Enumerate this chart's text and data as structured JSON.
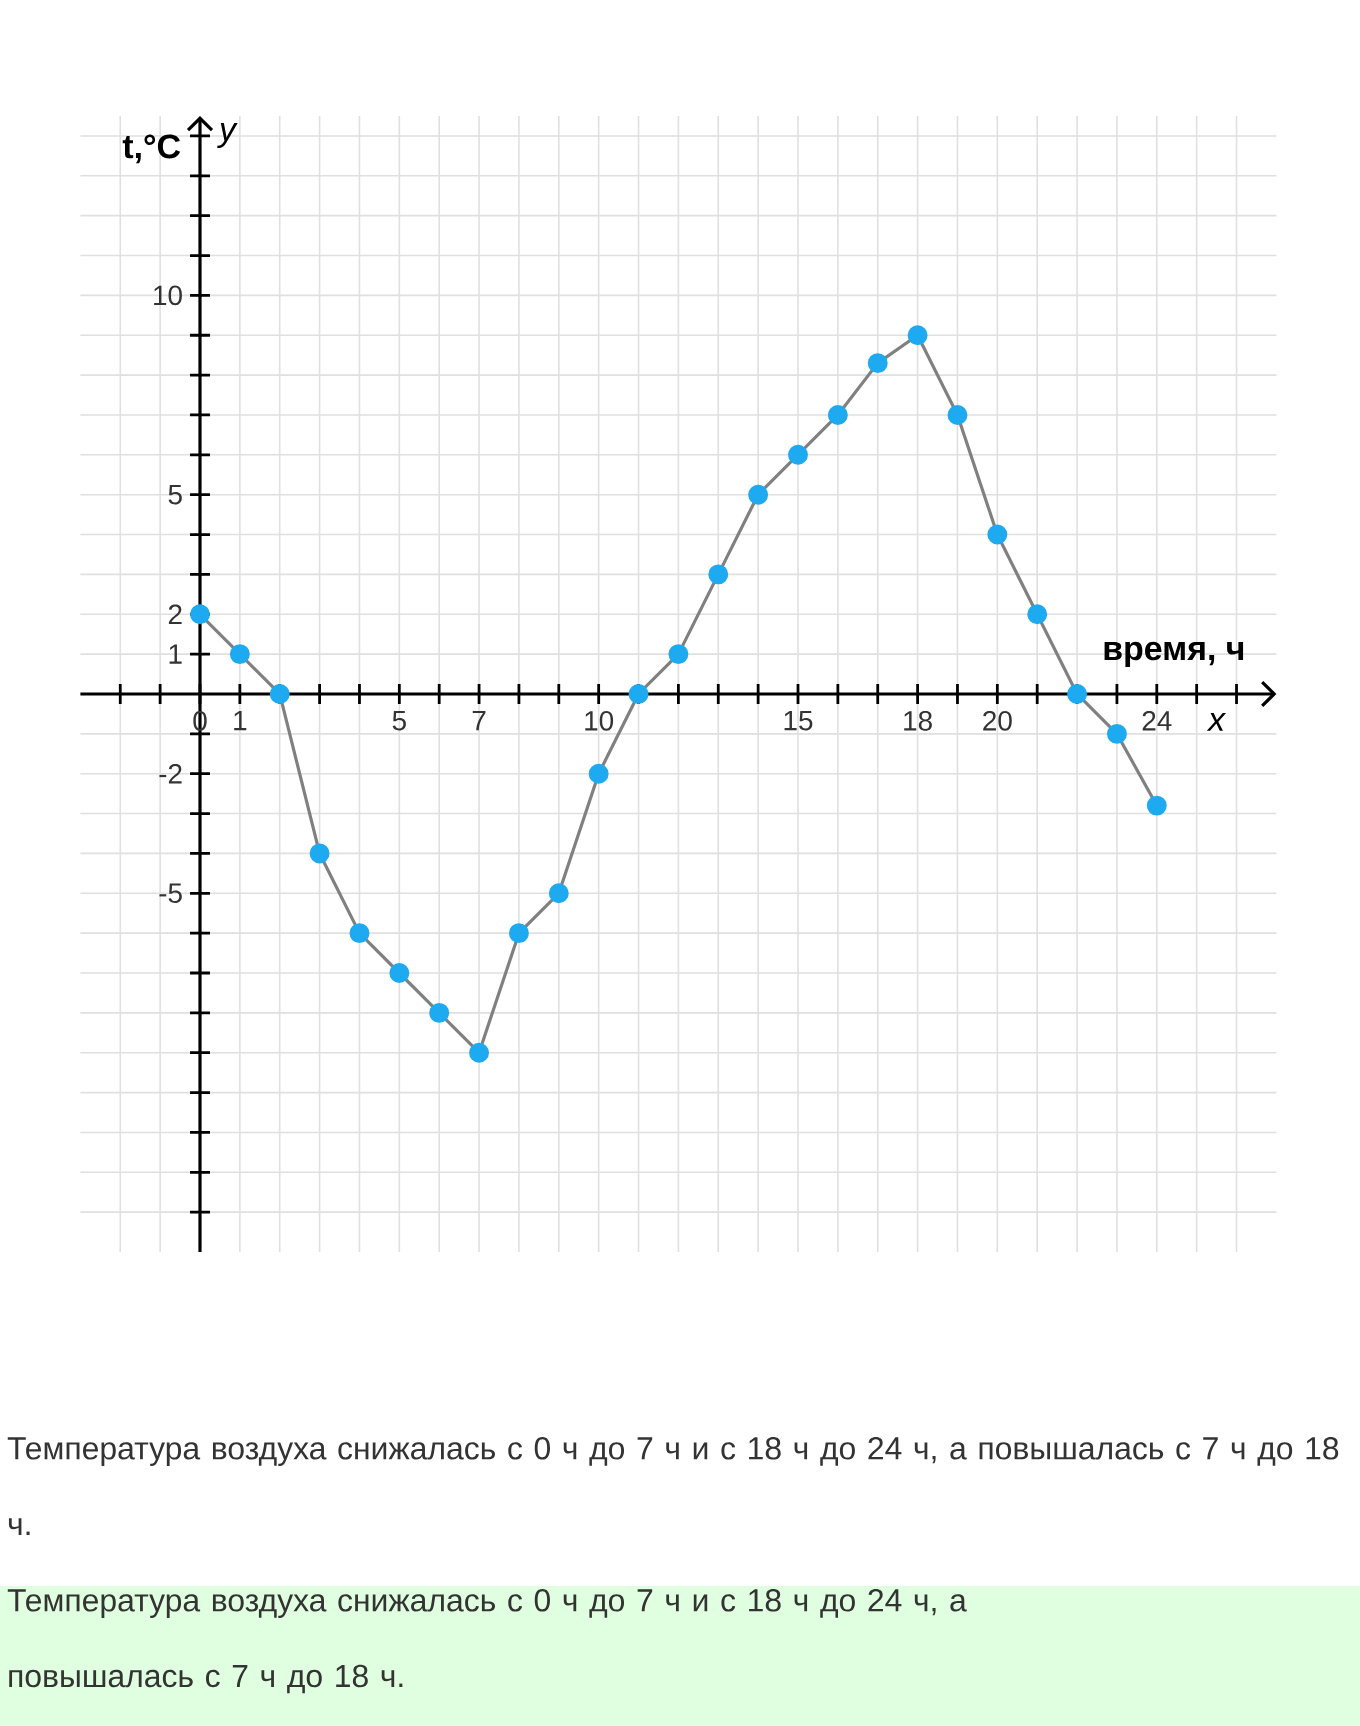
{
  "chart_data": {
    "type": "line",
    "xlabel": "время, ч",
    "ylabel": "t,°C",
    "x": [
      0,
      1,
      2,
      3,
      4,
      5,
      6,
      7,
      8,
      9,
      10,
      11,
      12,
      13,
      14,
      15,
      16,
      17,
      18,
      19,
      20,
      21,
      22,
      23,
      24
    ],
    "series": [
      {
        "color": "#1eaaf0",
        "values": [
          2,
          1,
          0,
          -4,
          -6,
          -7,
          -8,
          -9,
          -6,
          -5,
          -2,
          0,
          1,
          3,
          5,
          6,
          7,
          8.3,
          9,
          7,
          4,
          2,
          0,
          -1,
          -2.8
        ]
      }
    ],
    "marker": "circle",
    "grid": true,
    "xlim": [
      -3,
      27
    ],
    "ylim": [
      -14,
      14.5
    ],
    "xticks": [
      {
        "value": -2,
        "label": null
      },
      {
        "value": -1,
        "label": null
      },
      0,
      1,
      {
        "value": 2,
        "label": null
      },
      {
        "value": 3,
        "label": null
      },
      {
        "value": 4,
        "label": null
      },
      5,
      {
        "value": 6,
        "label": null
      },
      7,
      {
        "value": 8,
        "label": null
      },
      {
        "value": 9,
        "label": null
      },
      10,
      {
        "value": 11,
        "label": null
      },
      {
        "value": 12,
        "label": null
      },
      {
        "value": 13,
        "label": null
      },
      {
        "value": 14,
        "label": null
      },
      15,
      {
        "value": 16,
        "label": null
      },
      {
        "value": 17,
        "label": null
      },
      18,
      {
        "value": 19,
        "label": null
      },
      20,
      {
        "value": 21,
        "label": null
      },
      {
        "value": 22,
        "label": null
      },
      {
        "value": 23,
        "label": null
      },
      24,
      {
        "value": 25,
        "label": null
      },
      {
        "value": 26,
        "label": null
      }
    ],
    "yticks": [
      {
        "value": -13,
        "label": null
      },
      {
        "value": -12,
        "label": null
      },
      {
        "value": -11,
        "label": null
      },
      {
        "value": -10,
        "label": null
      },
      {
        "value": -9,
        "label": null
      },
      {
        "value": -8,
        "label": null
      },
      {
        "value": -7,
        "label": null
      },
      {
        "value": -6,
        "label": null
      },
      -5,
      {
        "value": -4,
        "label": null
      },
      {
        "value": -3,
        "label": null
      },
      -2,
      {
        "value": -1,
        "label": null
      },
      1,
      2,
      {
        "value": 3,
        "label": null
      },
      {
        "value": 4,
        "label": null
      },
      5,
      {
        "value": 6,
        "label": null
      },
      {
        "value": 7,
        "label": null
      },
      {
        "value": 8,
        "label": null
      },
      {
        "value": 9,
        "label": null
      },
      10,
      {
        "value": 11,
        "label": null
      },
      {
        "value": 12,
        "label": null
      },
      {
        "value": 13,
        "label": null
      },
      {
        "value": 14,
        "label": null
      }
    ],
    "annotations": [
      "y",
      "x",
      "Температура воздуха снижалась с 0 ч до 7 ч и с 18 ч до 24 ч, а повышалась с 7 ч до 18 ч.",
      "Температура воздуха снижалась с 0 ч до 7 ч и с 18 ч до 24 ч, а повышалась с 7 ч до 18 ч."
    ]
  }
}
